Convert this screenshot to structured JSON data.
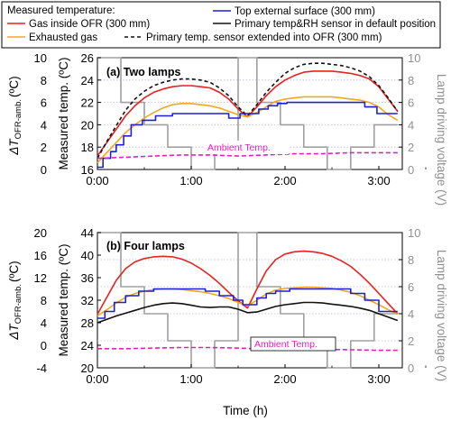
{
  "legend": {
    "title": "Measured temperature:",
    "entries": [
      {
        "key": "gas_inside",
        "label": "Gas inside OFR (300 mm)",
        "color": "#e8201f",
        "dash": ""
      },
      {
        "key": "top_surface",
        "label": "Top external surface (300 mm)",
        "color": "#1f1fd6",
        "dash": ""
      },
      {
        "key": "primary_default",
        "label": "Primary temp&RH sensor in default position",
        "color": "#111111",
        "dash": ""
      },
      {
        "key": "exhausted",
        "label": "Exhausted gas",
        "color": "#f0a820",
        "dash": ""
      },
      {
        "key": "primary_extended",
        "label": "Primary temp. sensor extended into OFR (300 mm)",
        "color": "#111111",
        "dash": "4,3"
      }
    ]
  },
  "xlabel": "Time (h)",
  "x_ticks": [
    "0:00",
    "1:00",
    "2:00",
    "3:00"
  ],
  "chart_data": [
    {
      "type": "line",
      "panel_label": "(a) Two lamps",
      "ylabel_left_outer": "ΔT",
      "ylabel_left_outer_sub": "OFR-amb.",
      "ylabel_left_outer_unit": "(ºC)",
      "ylabel_left_inner": "Measured temp. (ºC)",
      "ylabel_right": "Lamp driving voltage (V)",
      "annotation": "Ambient Temp.",
      "xlim": [
        0,
        3.25
      ],
      "ylim_measured": [
        16,
        26
      ],
      "ylim_delta": [
        0,
        10
      ],
      "ylim_voltage": [
        0,
        10
      ],
      "ticks_measured": [
        16,
        18,
        20,
        22,
        24,
        26
      ],
      "ticks_delta": [
        0,
        2,
        4,
        6,
        8,
        10
      ],
      "ticks_voltage": [
        0,
        2,
        4,
        6,
        8,
        10
      ],
      "series": [
        {
          "key": "voltage",
          "color": "#a0a0a0",
          "x": [
            0,
            0.25,
            0.25,
            0.5,
            0.5,
            0.75,
            0.75,
            1.0,
            1.0,
            1.25,
            1.25,
            1.5,
            1.5,
            1.7,
            1.7,
            1.95,
            1.95,
            2.2,
            2.2,
            2.45,
            2.45,
            2.7,
            2.7,
            2.95,
            2.95,
            3.2
          ],
          "y": [
            10,
            10,
            6,
            6,
            4,
            4,
            2,
            2,
            0,
            0,
            2,
            2,
            10,
            10,
            6,
            6,
            4,
            4,
            2,
            2,
            0,
            0,
            2,
            2,
            4,
            4
          ]
        },
        {
          "key": "gas_inside",
          "color": "#e8201f",
          "x": [
            0,
            0.1,
            0.2,
            0.3,
            0.4,
            0.5,
            0.6,
            0.7,
            0.8,
            0.9,
            1.0,
            1.1,
            1.2,
            1.3,
            1.4,
            1.5,
            1.6,
            1.7,
            1.8,
            1.9,
            2.0,
            2.1,
            2.2,
            2.3,
            2.4,
            2.5,
            2.6,
            2.7,
            2.8,
            2.9,
            3.0,
            3.1,
            3.2
          ],
          "y": [
            17.2,
            18.4,
            19.6,
            20.8,
            21.7,
            22.4,
            22.9,
            23.2,
            23.4,
            23.5,
            23.5,
            23.4,
            23.3,
            22.9,
            22.3,
            21.4,
            20.7,
            21.6,
            22.6,
            23.4,
            24.0,
            24.4,
            24.7,
            24.8,
            24.8,
            24.8,
            24.7,
            24.6,
            24.4,
            24.1,
            23.4,
            22.3,
            21.2
          ]
        },
        {
          "key": "primary_extended",
          "color": "#111111",
          "dash": "4,3",
          "x": [
            0,
            0.1,
            0.2,
            0.3,
            0.4,
            0.5,
            0.6,
            0.7,
            0.8,
            0.9,
            1.0,
            1.1,
            1.2,
            1.3,
            1.4,
            1.5,
            1.6,
            1.7,
            1.8,
            1.9,
            2.0,
            2.1,
            2.2,
            2.3,
            2.4,
            2.5,
            2.6,
            2.7,
            2.8,
            2.9,
            3.0,
            3.1,
            3.2
          ],
          "y": [
            17.0,
            18.5,
            19.9,
            21.3,
            22.3,
            23.0,
            23.5,
            23.8,
            24.0,
            24.1,
            24.1,
            24.0,
            23.8,
            23.3,
            22.6,
            21.6,
            20.8,
            21.8,
            22.9,
            23.8,
            24.6,
            25.1,
            25.4,
            25.5,
            25.5,
            25.4,
            25.3,
            25.1,
            24.8,
            24.3,
            23.5,
            22.4,
            21.2
          ]
        },
        {
          "key": "exhausted",
          "color": "#f0a820",
          "x": [
            0,
            0.1,
            0.2,
            0.3,
            0.4,
            0.5,
            0.6,
            0.7,
            0.8,
            0.9,
            1.0,
            1.1,
            1.2,
            1.3,
            1.4,
            1.5,
            1.6,
            1.7,
            1.8,
            1.9,
            2.0,
            2.1,
            2.2,
            2.3,
            2.4,
            2.5,
            2.6,
            2.7,
            2.8,
            2.9,
            3.0,
            3.1,
            3.2
          ],
          "y": [
            16.6,
            17.5,
            18.4,
            19.3,
            20.0,
            20.6,
            21.1,
            21.5,
            21.8,
            21.9,
            21.9,
            21.8,
            21.7,
            21.5,
            21.2,
            20.9,
            20.7,
            21.1,
            21.6,
            22.1,
            22.3,
            22.4,
            22.5,
            22.5,
            22.5,
            22.5,
            22.4,
            22.3,
            22.2,
            22.0,
            21.6,
            20.9,
            20.4
          ]
        },
        {
          "key": "top_surface",
          "color": "#1f1fd6",
          "x": [
            0,
            0.06,
            0.06,
            0.14,
            0.14,
            0.2,
            0.2,
            0.28,
            0.28,
            0.36,
            0.36,
            0.48,
            0.48,
            0.62,
            0.62,
            0.8,
            0.8,
            1.4,
            1.4,
            1.52,
            1.52,
            1.72,
            1.72,
            1.82,
            1.82,
            1.92,
            1.92,
            2.02,
            2.02,
            2.12,
            2.12,
            2.85,
            2.85,
            2.98,
            2.98,
            3.2
          ],
          "y": [
            16.2,
            16.2,
            17,
            17,
            17.6,
            17.6,
            18.2,
            18.2,
            19,
            19,
            20,
            20,
            20.4,
            20.4,
            20.8,
            20.8,
            21,
            21,
            20.6,
            20.6,
            21,
            21,
            21.4,
            21.4,
            21.7,
            21.7,
            21.9,
            21.9,
            22,
            22,
            22,
            22,
            21.6,
            21.6,
            21,
            21
          ]
        },
        {
          "key": "ambient",
          "color": "#e020c0",
          "dash": "5,3",
          "x": [
            0,
            0.3,
            0.6,
            0.9,
            1.2,
            1.5,
            1.8,
            2.1,
            2.4,
            2.7,
            3.0,
            3.2
          ],
          "y": [
            17.0,
            17.1,
            17.2,
            17.3,
            17.3,
            17.2,
            17.3,
            17.4,
            17.4,
            17.5,
            17.5,
            17.5
          ]
        }
      ]
    },
    {
      "type": "line",
      "panel_label": "(b) Four lamps",
      "ylabel_left_outer": "ΔT",
      "ylabel_left_outer_sub": "OFR-amb.",
      "ylabel_left_outer_unit": "(ºC)",
      "ylabel_left_inner": "Measured temp. (ºC)",
      "ylabel_right": "Lamp driving voltage (V)",
      "annotation": "Ambient Temp.",
      "xlim": [
        0,
        3.25
      ],
      "ylim_measured": [
        20,
        44
      ],
      "ylim_delta": [
        -4,
        20
      ],
      "ylim_voltage": [
        0,
        10
      ],
      "ticks_measured": [
        20,
        24,
        28,
        32,
        36,
        40,
        44
      ],
      "ticks_delta": [
        -4,
        0,
        4,
        8,
        12,
        16,
        20
      ],
      "ticks_voltage": [
        0,
        2,
        4,
        6,
        8,
        10
      ],
      "series": [
        {
          "key": "voltage",
          "color": "#a0a0a0",
          "x": [
            0,
            0.25,
            0.25,
            0.5,
            0.5,
            0.75,
            0.75,
            1.0,
            1.0,
            1.25,
            1.25,
            1.5,
            1.5,
            1.7,
            1.7,
            1.95,
            1.95,
            2.2,
            2.2,
            2.45,
            2.45,
            2.7,
            2.7,
            2.95,
            2.95,
            3.2
          ],
          "y": [
            10,
            10,
            6,
            6,
            4,
            4,
            2,
            2,
            0,
            0,
            2,
            2,
            10,
            10,
            6,
            6,
            4,
            4,
            2,
            2,
            0,
            0,
            2,
            2,
            4,
            4
          ]
        },
        {
          "key": "gas_inside",
          "color": "#e8201f",
          "x": [
            0,
            0.1,
            0.2,
            0.3,
            0.4,
            0.5,
            0.6,
            0.7,
            0.8,
            0.9,
            1.0,
            1.1,
            1.2,
            1.3,
            1.4,
            1.5,
            1.6,
            1.7,
            1.8,
            1.9,
            2.0,
            2.1,
            2.2,
            2.3,
            2.4,
            2.5,
            2.6,
            2.7,
            2.8,
            2.9,
            3.0,
            3.1,
            3.2
          ],
          "y": [
            29.5,
            32.5,
            35.5,
            37.6,
            38.8,
            39.4,
            39.7,
            39.8,
            39.7,
            39.3,
            38.6,
            37.6,
            36.4,
            35.0,
            33.4,
            31.9,
            30.6,
            34.0,
            37.2,
            39.2,
            40.2,
            40.6,
            40.7,
            40.6,
            40.3,
            39.8,
            39.0,
            38.0,
            36.6,
            35.0,
            33.2,
            31.4,
            29.6
          ]
        },
        {
          "key": "exhausted",
          "color": "#f0a820",
          "x": [
            0,
            0.1,
            0.2,
            0.3,
            0.4,
            0.5,
            0.6,
            0.7,
            0.8,
            0.9,
            1.0,
            1.1,
            1.2,
            1.3,
            1.4,
            1.5,
            1.6,
            1.7,
            1.8,
            1.9,
            2.0,
            2.1,
            2.2,
            2.3,
            2.4,
            2.5,
            2.6,
            2.7,
            2.8,
            2.9,
            3.0,
            3.1,
            3.2
          ],
          "y": [
            29.2,
            30.3,
            31.5,
            32.5,
            33.2,
            33.6,
            33.9,
            34.0,
            34.0,
            33.9,
            33.7,
            33.5,
            33.2,
            32.8,
            32.3,
            31.6,
            31.0,
            32.0,
            33.1,
            33.8,
            34.1,
            34.2,
            34.3,
            34.3,
            34.2,
            34.1,
            33.8,
            33.4,
            32.8,
            32.0,
            31.2,
            30.3,
            29.5
          ]
        },
        {
          "key": "top_surface",
          "color": "#1f1fd6",
          "x": [
            0,
            0.08,
            0.08,
            0.18,
            0.18,
            0.3,
            0.3,
            0.44,
            0.44,
            0.6,
            0.6,
            1.15,
            1.15,
            1.3,
            1.3,
            1.45,
            1.45,
            1.55,
            1.55,
            1.7,
            1.7,
            1.8,
            1.8,
            1.9,
            1.9,
            2.05,
            2.05,
            2.7,
            2.7,
            2.85,
            2.85,
            3.0,
            3.0,
            3.2
          ],
          "y": [
            28.8,
            28.8,
            30.0,
            30.0,
            31.6,
            31.6,
            32.8,
            32.8,
            33.6,
            33.6,
            34.0,
            34.0,
            33.6,
            33.6,
            32.8,
            32.8,
            32.0,
            32.0,
            31.2,
            31.2,
            32.4,
            32.4,
            33.2,
            33.2,
            33.6,
            33.6,
            34.0,
            34.0,
            33.2,
            33.2,
            32.0,
            32.0,
            30.0,
            30.0
          ]
        },
        {
          "key": "primary_default",
          "color": "#111111",
          "x": [
            0,
            0.1,
            0.2,
            0.3,
            0.4,
            0.5,
            0.6,
            0.7,
            0.8,
            0.9,
            1.0,
            1.1,
            1.2,
            1.3,
            1.4,
            1.5,
            1.6,
            1.7,
            1.8,
            1.9,
            2.0,
            2.1,
            2.2,
            2.3,
            2.4,
            2.5,
            2.6,
            2.7,
            2.8,
            2.9,
            3.0,
            3.1,
            3.2
          ],
          "y": [
            28.0,
            28.6,
            29.2,
            29.7,
            30.2,
            30.7,
            31.1,
            31.4,
            31.5,
            31.4,
            31.1,
            30.8,
            30.7,
            30.8,
            30.8,
            30.4,
            29.8,
            29.9,
            30.4,
            30.9,
            31.2,
            31.4,
            31.6,
            31.6,
            31.5,
            31.3,
            31.1,
            30.9,
            30.6,
            30.2,
            29.6,
            29.0,
            28.4
          ]
        },
        {
          "key": "ambient",
          "color": "#e020c0",
          "dash": "5,3",
          "x": [
            0,
            0.3,
            0.6,
            0.9,
            1.2,
            1.5,
            1.8,
            2.1,
            2.4,
            2.7,
            3.0,
            3.2
          ],
          "y": [
            23.4,
            23.4,
            23.5,
            23.6,
            23.6,
            23.5,
            23.3,
            23.4,
            23.3,
            23.2,
            23.1,
            23.1
          ]
        }
      ]
    }
  ]
}
